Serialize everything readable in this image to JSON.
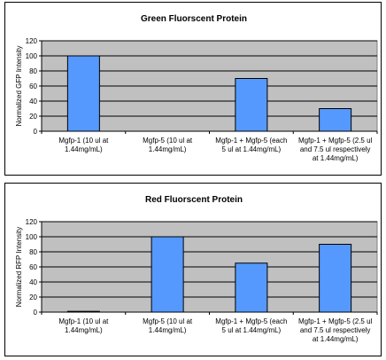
{
  "chart_data": [
    {
      "type": "bar",
      "title": "Green Fluorscent Protein",
      "ylabel": "Normalized GFP Intensity",
      "xlabel": "",
      "categories": [
        [
          "Mgfp-1 (10 ul at",
          "1.44mg/mL)"
        ],
        [
          "Mgfp-5 (10 ul at",
          "1.44mg/mL)"
        ],
        [
          "Mgfp-1 + Mgfp-5 (each",
          "5 ul at 1.44mg/mL)"
        ],
        [
          "Mgfp-1 + Mgfp-5 (2.5 ul",
          "and 7.5 ul respectively",
          "at 1.44mg/mL)"
        ]
      ],
      "values": [
        100,
        0,
        70,
        30
      ],
      "ylim": [
        0,
        120
      ],
      "yticks": [
        0,
        20,
        40,
        60,
        80,
        100,
        120
      ],
      "grid": true,
      "legend": "none"
    },
    {
      "type": "bar",
      "title": "Red Fluorscent Protein",
      "ylabel": "Normalized RFP Intensity",
      "xlabel": "",
      "categories": [
        [
          "Mgfp-1 (10 ul at",
          "1.44mg/mL)"
        ],
        [
          "Mgfp-5 (10 ul at",
          "1.44mg/mL)"
        ],
        [
          "Mgfp-1 + Mgfp-5 (each",
          "5 ul at 1.44mg/mL)"
        ],
        [
          "Mgfp-1 + Mgfp-5 (2.5 ul",
          "and 7.5 ul respectively",
          "at 1.44mg/mL)"
        ]
      ],
      "values": [
        1,
        100,
        65,
        90
      ],
      "ylim": [
        0,
        120
      ],
      "yticks": [
        0,
        20,
        40,
        60,
        80,
        100,
        120
      ],
      "grid": true,
      "legend": "none"
    }
  ],
  "colors": {
    "bar_fill": "#5599ff",
    "bar_stroke": "#000000",
    "plot_bg": "#c0c0c0",
    "gridline": "#000000"
  }
}
